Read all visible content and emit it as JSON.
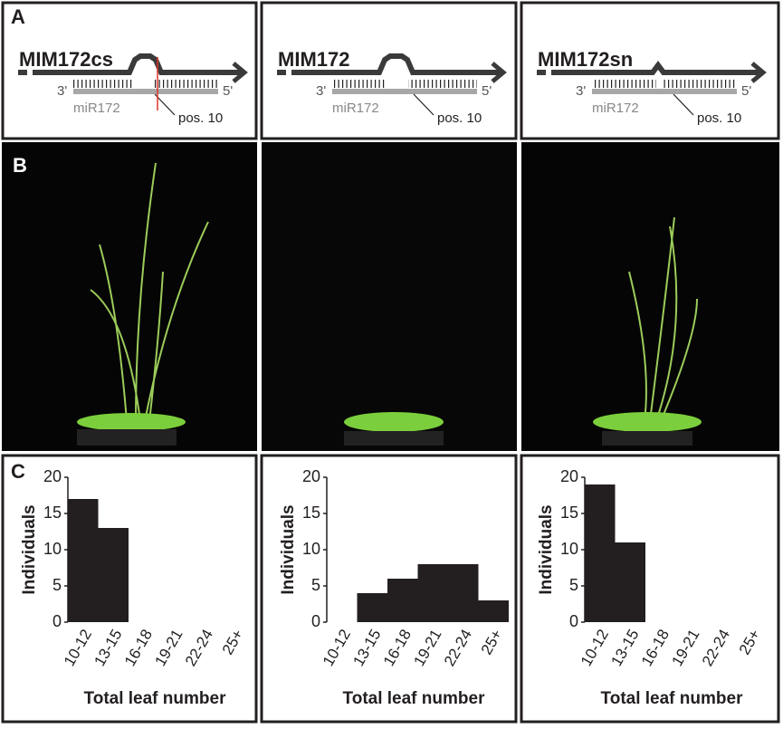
{
  "panel_labels": [
    "A",
    "B",
    "C"
  ],
  "constructs": [
    {
      "name": "MIM172cs",
      "three_prime": "3'",
      "five_prime": "5'",
      "mirna": "miR172",
      "position": "pos. 10"
    },
    {
      "name": "MIM172",
      "three_prime": "3'",
      "five_prime": "5'",
      "mirna": "miR172",
      "position": "pos. 10"
    },
    {
      "name": "MIM172sn",
      "three_prime": "3'",
      "five_prime": "5'",
      "mirna": "miR172",
      "position": "pos. 10"
    }
  ],
  "chart_data": [
    {
      "type": "bar",
      "y_label": "Individuals",
      "x_label": "Total leaf number",
      "categories": [
        "10-12",
        "13-15",
        "16-18",
        "19-21",
        "22-24",
        "25+"
      ],
      "values": [
        17,
        13,
        0,
        0,
        0,
        0
      ],
      "color": "#231f20",
      "ylim": [
        0,
        20
      ],
      "yticks": [
        0,
        5,
        10,
        15,
        20
      ]
    },
    {
      "type": "bar",
      "y_label": "Individuals",
      "x_label": "Total leaf number",
      "categories": [
        "10-12",
        "13-15",
        "16-18",
        "19-21",
        "22-24",
        "25+"
      ],
      "values": [
        0,
        4,
        6,
        8,
        8,
        3
      ],
      "color": "#231f20",
      "ylim": [
        0,
        20
      ],
      "yticks": [
        0,
        5,
        10,
        15,
        20
      ]
    },
    {
      "type": "bar",
      "y_label": "Individuals",
      "x_label": "Total leaf number",
      "categories": [
        "10-12",
        "13-15",
        "16-18",
        "19-21",
        "22-24",
        "25+"
      ],
      "values": [
        19,
        11,
        0,
        0,
        0,
        0
      ],
      "color": "#231f20",
      "ylim": [
        0,
        20
      ],
      "yticks": [
        0,
        5,
        10,
        15,
        20
      ]
    }
  ]
}
